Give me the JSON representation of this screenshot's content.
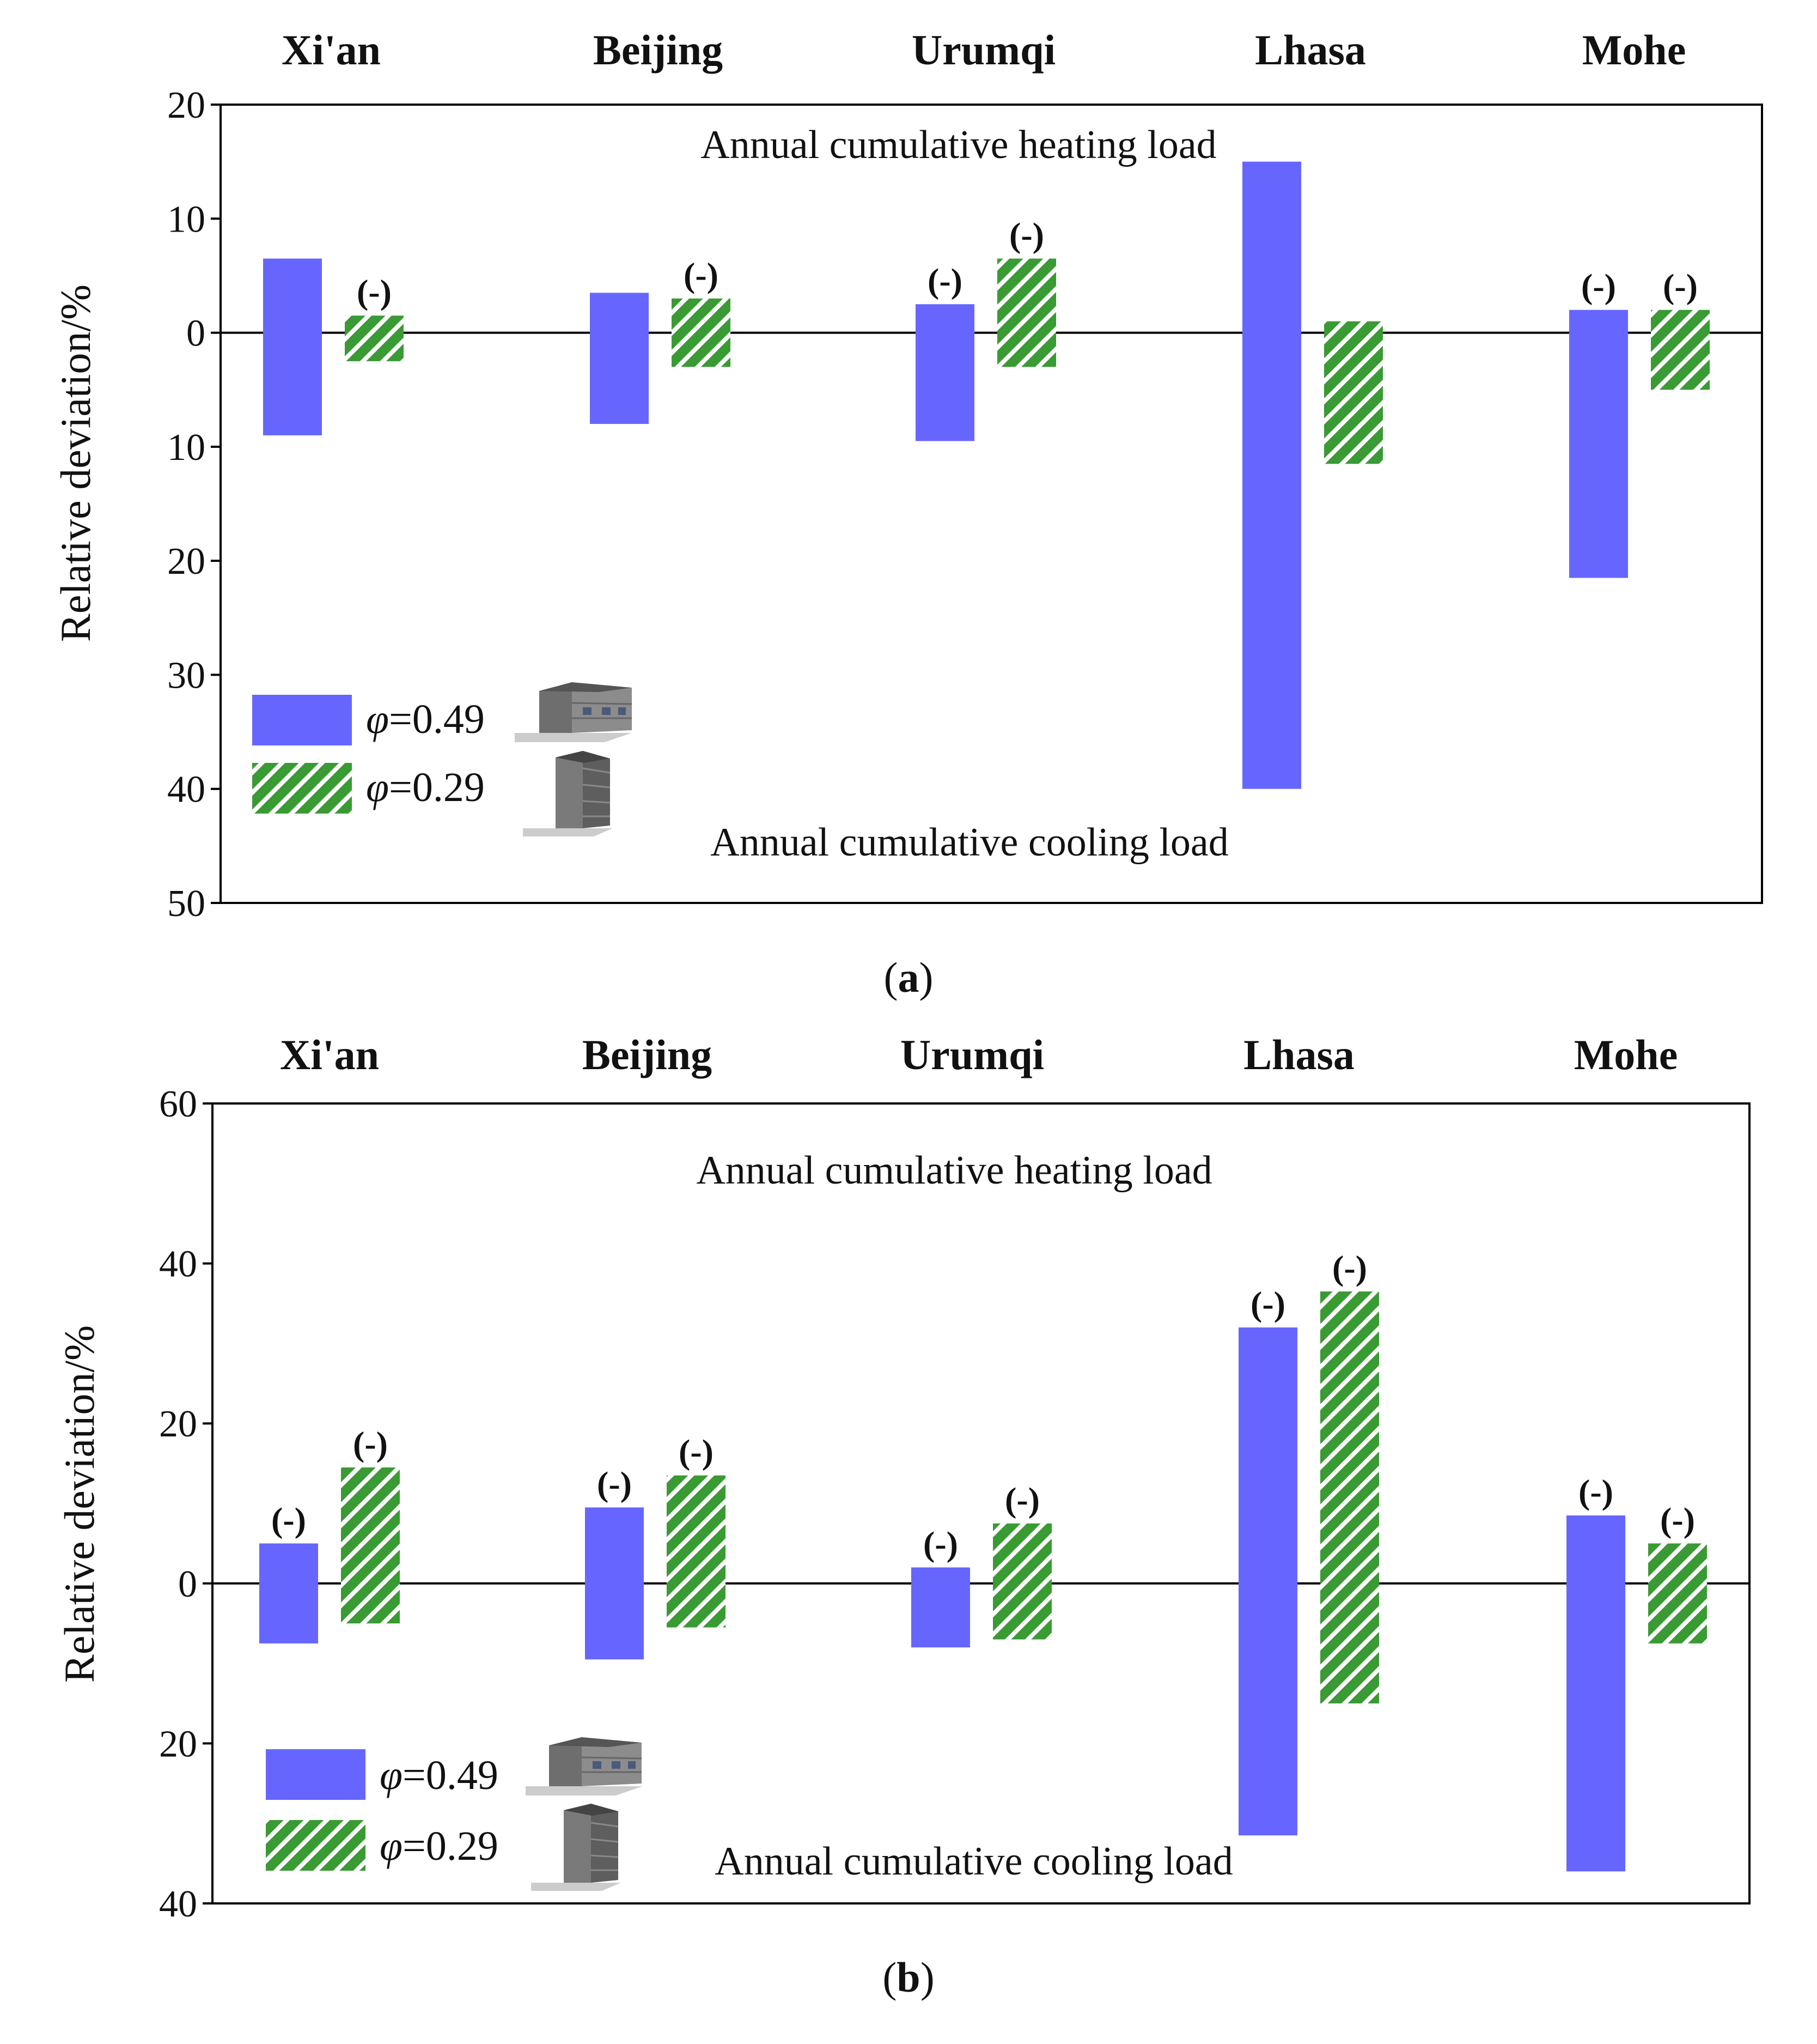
{
  "colors": {
    "phi049": "#6666ff",
    "phi029": "#3a9a34",
    "axis": "#000000"
  },
  "chart_data": [
    {
      "panel": "a",
      "type": "bar",
      "caption": "a",
      "categories": [
        "Xi'an",
        "Beijing",
        "Urumqi",
        "Lhasa",
        "Mohe"
      ],
      "ylabel": "Relative deviation/%",
      "ylim": [
        -50,
        20
      ],
      "yticks": [
        {
          "value": 20,
          "label": "20"
        },
        {
          "value": 10,
          "label": "10"
        },
        {
          "value": 0,
          "label": "0"
        },
        {
          "value": -10,
          "label": "10"
        },
        {
          "value": -20,
          "label": "20"
        },
        {
          "value": -30,
          "label": "30"
        },
        {
          "value": -40,
          "label": "40"
        },
        {
          "value": -50,
          "label": "50"
        }
      ],
      "annotation_top": "Annual cumulative heating load",
      "annotation_bottom": "Annual cumulative cooling load",
      "series": [
        {
          "name": "φ=0.49",
          "heating": [
            6.5,
            3.5,
            2.5,
            15.0,
            2.0
          ],
          "cooling": [
            -9.0,
            -8.0,
            -9.5,
            -40.0,
            -21.5
          ],
          "negative_marks": [
            "",
            "",
            "(-)",
            "",
            "(-)"
          ]
        },
        {
          "name": "φ=0.29",
          "heating": [
            1.5,
            3.0,
            6.5,
            1.0,
            2.0
          ],
          "cooling": [
            -2.5,
            -3.0,
            -3.0,
            -11.5,
            -5.0
          ],
          "negative_marks": [
            "(-)",
            "(-)",
            "(-)",
            "",
            "(-)"
          ]
        }
      ],
      "legend": [
        {
          "symbol": "φ",
          "value": "=0.49"
        },
        {
          "symbol": "φ",
          "value": "=0.29"
        }
      ]
    },
    {
      "panel": "b",
      "type": "bar",
      "caption": "b",
      "categories": [
        "Xi'an",
        "Beijing",
        "Urumqi",
        "Lhasa",
        "Mohe"
      ],
      "ylabel": "Relative deviation/%",
      "ylim": [
        -40,
        60
      ],
      "yticks": [
        {
          "value": 60,
          "label": "60"
        },
        {
          "value": 40,
          "label": "40"
        },
        {
          "value": 20,
          "label": "20"
        },
        {
          "value": 0,
          "label": "0"
        },
        {
          "value": -20,
          "label": "20"
        },
        {
          "value": -40,
          "label": "40"
        }
      ],
      "annotation_top": "Annual cumulative heating load",
      "annotation_bottom": "Annual cumulative cooling load",
      "series": [
        {
          "name": "φ=0.49",
          "heating": [
            5.0,
            9.5,
            2.0,
            32.0,
            8.5
          ],
          "cooling": [
            -7.5,
            -9.5,
            -8.0,
            -31.5,
            -36.0
          ],
          "negative_marks": [
            "(-)",
            "(-)",
            "(-)",
            "(-)",
            "(-)"
          ]
        },
        {
          "name": "φ=0.29",
          "heating": [
            14.5,
            13.5,
            7.5,
            36.5,
            5.0
          ],
          "cooling": [
            -5.0,
            -5.5,
            -7.0,
            -15.0,
            -7.5
          ],
          "negative_marks": [
            "(-)",
            "(-)",
            "(-)",
            "(-)",
            "(-)"
          ]
        }
      ],
      "legend": [
        {
          "symbol": "φ",
          "value": "=0.49"
        },
        {
          "symbol": "φ",
          "value": "=0.29"
        }
      ]
    }
  ]
}
